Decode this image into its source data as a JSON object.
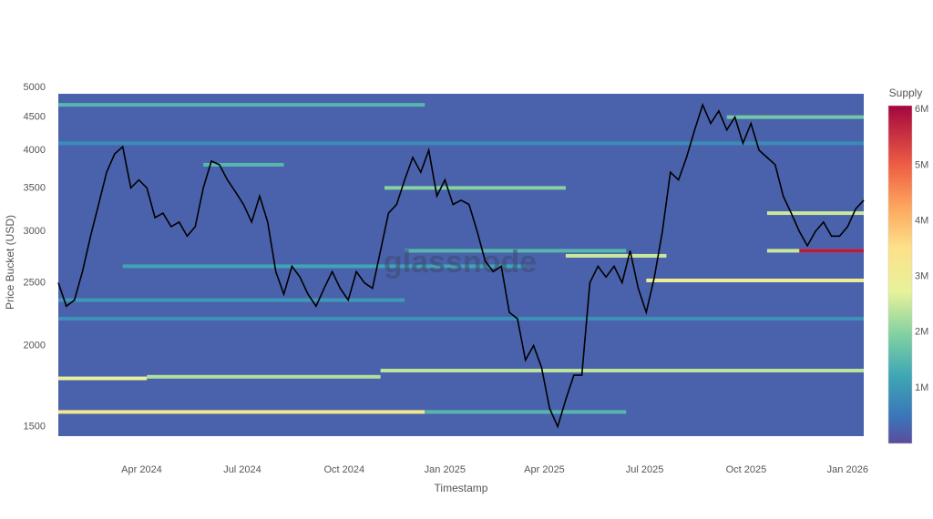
{
  "chart_data": {
    "type": "heatmap",
    "xlabel": "Timestamp",
    "ylabel": "Price Bucket (USD)",
    "colorbar_title": "Supply",
    "watermark": "glassnode",
    "xlim": [
      2024.04,
      2026.04
    ],
    "xticks": [
      {
        "value": 2024.247,
        "label": "Apr 2024"
      },
      {
        "value": 2024.497,
        "label": "Jul 2024"
      },
      {
        "value": 2024.75,
        "label": "Oct 2024"
      },
      {
        "value": 2025.0,
        "label": "Jan 2025"
      },
      {
        "value": 2025.247,
        "label": "Apr 2025"
      },
      {
        "value": 2025.496,
        "label": "Jul 2025"
      },
      {
        "value": 2025.748,
        "label": "Oct 2025"
      },
      {
        "value": 2026.0,
        "label": "Jan 2026"
      }
    ],
    "ylim": [
      1450,
      5000
    ],
    "log_y": true,
    "yticks": [
      1500,
      2000,
      2500,
      3000,
      3500,
      4000,
      4500,
      5000
    ],
    "clim": [
      0,
      6070000
    ],
    "cticks": [
      {
        "value": 1000000,
        "label": "1M"
      },
      {
        "value": 2000000,
        "label": "2M"
      },
      {
        "value": 3000000,
        "label": "3M"
      },
      {
        "value": 4000000,
        "label": "4M"
      },
      {
        "value": 5000000,
        "label": "5M"
      },
      {
        "value": 6000000,
        "label": "6M"
      }
    ],
    "colorscale": [
      [
        0,
        "#5a4c9e"
      ],
      [
        0.08,
        "#3a76b8"
      ],
      [
        0.2,
        "#3fa6b5"
      ],
      [
        0.32,
        "#7fd0a2"
      ],
      [
        0.45,
        "#e8f29a"
      ],
      [
        0.58,
        "#fde08a"
      ],
      [
        0.7,
        "#fca65e"
      ],
      [
        0.82,
        "#ef6044"
      ],
      [
        1,
        "#a3063f"
      ]
    ],
    "background_supply": 250000,
    "bands": [
      {
        "price": 4700,
        "start": 2024.04,
        "end": 2024.95,
        "supply": 1500000
      },
      {
        "price": 4100,
        "start": 2024.04,
        "end": 2026.04,
        "supply": 800000
      },
      {
        "price": 3800,
        "start": 2024.4,
        "end": 2024.6,
        "supply": 1500000
      },
      {
        "price": 3500,
        "start": 2024.85,
        "end": 2025.3,
        "supply": 2000000
      },
      {
        "price": 2650,
        "start": 2024.2,
        "end": 2025.2,
        "supply": 1200000
      },
      {
        "price": 2800,
        "start": 2024.9,
        "end": 2025.45,
        "supply": 1500000
      },
      {
        "price": 2350,
        "start": 2024.04,
        "end": 2024.9,
        "supply": 1000000
      },
      {
        "price": 2200,
        "start": 2024.04,
        "end": 2026.04,
        "supply": 900000
      },
      {
        "price": 1780,
        "start": 2024.04,
        "end": 2024.26,
        "supply": 2800000
      },
      {
        "price": 1790,
        "start": 2024.26,
        "end": 2024.84,
        "supply": 2300000
      },
      {
        "price": 1830,
        "start": 2024.84,
        "end": 2026.04,
        "supply": 2400000
      },
      {
        "price": 1580,
        "start": 2024.04,
        "end": 2024.95,
        "supply": 3200000
      },
      {
        "price": 1580,
        "start": 2024.95,
        "end": 2025.45,
        "supply": 1500000
      },
      {
        "price": 2750,
        "start": 2025.3,
        "end": 2025.55,
        "supply": 2500000
      },
      {
        "price": 2520,
        "start": 2025.5,
        "end": 2026.04,
        "supply": 3000000
      },
      {
        "price": 2800,
        "start": 2025.8,
        "end": 2026.04,
        "supply": 2500000
      },
      {
        "price": 2800,
        "start": 2025.88,
        "end": 2026.04,
        "supply": 5800000
      },
      {
        "price": 3200,
        "start": 2025.8,
        "end": 2026.04,
        "supply": 2500000
      },
      {
        "price": 4500,
        "start": 2025.7,
        "end": 2026.04,
        "supply": 1800000
      }
    ],
    "x": [
      2024.04,
      2024.06,
      2024.08,
      2024.1,
      2024.12,
      2024.14,
      2024.16,
      2024.18,
      2024.2,
      2024.22,
      2024.24,
      2024.26,
      2024.28,
      2024.3,
      2024.32,
      2024.34,
      2024.36,
      2024.38,
      2024.4,
      2024.42,
      2024.44,
      2024.46,
      2024.48,
      2024.5,
      2024.52,
      2024.54,
      2024.56,
      2024.58,
      2024.6,
      2024.62,
      2024.64,
      2024.66,
      2024.68,
      2024.7,
      2024.72,
      2024.74,
      2024.76,
      2024.78,
      2024.8,
      2024.82,
      2024.84,
      2024.86,
      2024.88,
      2024.9,
      2024.92,
      2024.94,
      2024.96,
      2024.98,
      2025.0,
      2025.02,
      2025.04,
      2025.06,
      2025.08,
      2025.1,
      2025.12,
      2025.14,
      2025.16,
      2025.18,
      2025.2,
      2025.22,
      2025.24,
      2025.26,
      2025.28,
      2025.3,
      2025.32,
      2025.34,
      2025.36,
      2025.38,
      2025.4,
      2025.42,
      2025.44,
      2025.46,
      2025.48,
      2025.5,
      2025.52,
      2025.54,
      2025.56,
      2025.58,
      2025.6,
      2025.62,
      2025.64,
      2025.66,
      2025.68,
      2025.7,
      2025.72,
      2025.74,
      2025.76,
      2025.78,
      2025.8,
      2025.82,
      2025.84,
      2025.86,
      2025.88,
      2025.9,
      2025.92,
      2025.94,
      2025.96,
      2025.98,
      2026.0,
      2026.02,
      2026.04
    ],
    "line": {
      "color": "#000000",
      "values": [
        2500,
        2300,
        2350,
        2600,
        2950,
        3300,
        3700,
        3950,
        4050,
        3500,
        3600,
        3500,
        3150,
        3200,
        3050,
        3100,
        2950,
        3050,
        3500,
        3850,
        3800,
        3600,
        3450,
        3300,
        3100,
        3400,
        3100,
        2600,
        2400,
        2650,
        2550,
        2400,
        2300,
        2450,
        2600,
        2450,
        2350,
        2600,
        2500,
        2450,
        2800,
        3200,
        3300,
        3600,
        3900,
        3700,
        4000,
        3400,
        3600,
        3300,
        3350,
        3300,
        3000,
        2700,
        2600,
        2650,
        2250,
        2200,
        1900,
        2000,
        1850,
        1600,
        1500,
        1650,
        1800,
        1800,
        2500,
        2650,
        2550,
        2650,
        2500,
        2800,
        2450,
        2250,
        2550,
        3000,
        3700,
        3600,
        3900,
        4300,
        4700,
        4400,
        4600,
        4300,
        4500,
        4100,
        4400,
        4000,
        3900,
        3800,
        3400,
        3200,
        3000,
        2850,
        3000,
        3100,
        2950,
        2950,
        3050,
        3250,
        3350
      ]
    }
  }
}
